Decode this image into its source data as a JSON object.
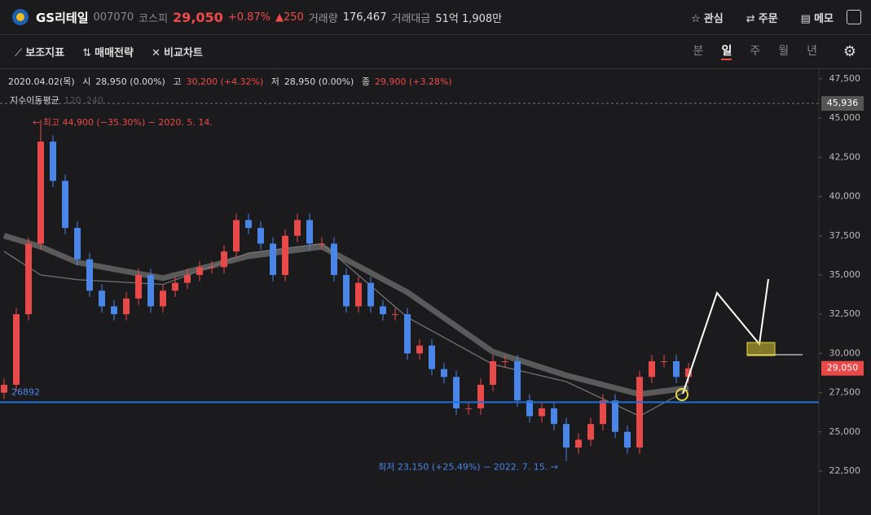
{
  "header": {
    "name": "GS리테일",
    "code": "007070",
    "market": "코스피",
    "price": "29,050",
    "change_pct": "+0.87%",
    "change": "250",
    "volume_label": "거래량",
    "volume": "176,467",
    "amount_label": "거래대금",
    "amount": "51억 1,908만",
    "actions": [
      "관심",
      "주문",
      "메모"
    ]
  },
  "toolbar": {
    "tools": [
      "보조지표",
      "매매전략",
      "비교차트"
    ],
    "periods": [
      "분",
      "일",
      "주",
      "월",
      "년"
    ],
    "active_period": "일"
  },
  "info": {
    "date": "2020.04.02(목)",
    "open_label": "시",
    "open": "28,950 (0.00%)",
    "high_label": "고",
    "high": "30,200 (+4.32%)",
    "low_label": "저",
    "low": "28,950 (0.00%)",
    "close_label": "종",
    "close": "29,900 (+3.28%)",
    "indicator": "지수이동평균",
    "ma1": "120",
    "ma2": "240"
  },
  "chart_data": {
    "type": "candlestick",
    "open": [
      27500,
      28000,
      32500,
      37000,
      43500,
      41000,
      38000,
      36000,
      34000,
      33000,
      32500,
      33500,
      35000,
      33000,
      34000,
      34500,
      35000,
      35500,
      35500,
      36500,
      38500,
      38000,
      37000,
      35000,
      37500,
      38500,
      37000,
      37000,
      35000,
      33000,
      34500,
      33000,
      32500,
      32500,
      30000,
      30500,
      29000,
      28500,
      26500,
      26500,
      28000,
      29500,
      29500,
      27000,
      26000,
      26500,
      25500,
      24000,
      24500,
      25500,
      27000,
      25000,
      24000,
      28500,
      29500,
      29500,
      28500
    ],
    "high": [
      28400,
      32900,
      37400,
      44900,
      43900,
      41400,
      38400,
      36400,
      34400,
      33400,
      33900,
      35400,
      35400,
      34400,
      34900,
      35400,
      35900,
      35900,
      36900,
      38900,
      38900,
      38400,
      37400,
      37900,
      38900,
      38900,
      37400,
      37400,
      35400,
      34900,
      34900,
      33400,
      32900,
      32900,
      30900,
      30900,
      29400,
      28900,
      26900,
      28400,
      29900,
      29900,
      29900,
      27400,
      26900,
      26900,
      25900,
      24900,
      25900,
      27400,
      27400,
      25400,
      28900,
      29900,
      29900,
      29900,
      29400
    ],
    "low": [
      27100,
      27600,
      32100,
      36600,
      40600,
      37600,
      35600,
      33600,
      32600,
      32100,
      32100,
      33100,
      32600,
      32600,
      33600,
      34100,
      34600,
      35100,
      35100,
      36100,
      37600,
      36600,
      34600,
      34600,
      37100,
      36600,
      36600,
      34600,
      32600,
      32600,
      32600,
      32100,
      32100,
      29600,
      29600,
      28600,
      28100,
      26100,
      26100,
      26100,
      27600,
      29100,
      26600,
      25600,
      25600,
      25100,
      23150,
      23600,
      24100,
      25100,
      24600,
      23600,
      23600,
      28100,
      29100,
      28100,
      28100
    ],
    "close": [
      28000,
      32500,
      37000,
      43500,
      41000,
      38000,
      36000,
      34000,
      33000,
      32500,
      33500,
      35000,
      33000,
      34000,
      34500,
      35000,
      35500,
      35500,
      36500,
      38500,
      38000,
      37000,
      35000,
      37500,
      38500,
      37000,
      37000,
      35000,
      33000,
      34500,
      33000,
      32500,
      32500,
      30000,
      30500,
      29000,
      28500,
      26500,
      26500,
      28000,
      29500,
      29500,
      27000,
      26000,
      26500,
      25500,
      24000,
      24500,
      25500,
      27000,
      25000,
      24000,
      28500,
      29500,
      29500,
      28500,
      29050
    ],
    "up_color": "#e84a4a",
    "down_color": "#4a86e8",
    "ma_series": [
      {
        "x": [
          0,
          3,
          6,
          13,
          20,
          26,
          33,
          40,
          46,
          52,
          56
        ],
        "values": [
          37500,
          36800,
          35800,
          34800,
          36200,
          36800,
          33900,
          30100,
          28600,
          27400,
          27800
        ],
        "color": "#5a5a5a"
      },
      {
        "x": [
          0,
          3,
          6,
          13,
          20,
          26,
          33,
          40,
          46,
          52,
          56
        ],
        "values": [
          36500,
          35000,
          34700,
          34400,
          36400,
          37000,
          32300,
          29300,
          28200,
          26000,
          27700
        ],
        "color": "#777777"
      }
    ],
    "ylim": [
      19700,
      48120
    ],
    "yticks": [
      {
        "value": 22500,
        "label": "22,500"
      },
      {
        "value": 25000,
        "label": "25,000"
      },
      {
        "value": 27500,
        "label": "27,500"
      },
      {
        "value": 30000,
        "label": "30,000"
      },
      {
        "value": 32500,
        "label": "32,500"
      },
      {
        "value": 35000,
        "label": "35,000"
      },
      {
        "value": 37500,
        "label": "37,500"
      },
      {
        "value": 40000,
        "label": "40,000"
      },
      {
        "value": 42500,
        "label": "42,500"
      },
      {
        "value": 45000,
        "label": "45,000"
      },
      {
        "value": 47500,
        "label": "47,500"
      }
    ],
    "hline": {
      "value": 26892,
      "color": "#1e6fd9"
    },
    "dotted_line": {
      "value": 45936,
      "label": "45,936"
    },
    "last_price": {
      "value": 29050,
      "label": "29,050"
    },
    "max_annotation": "← 최고 44,900 (−35.30%) − 2020. 5. 14.",
    "min_annotation": "최저 23,150 (+25.49%) − 2022. 7. 15. →"
  }
}
